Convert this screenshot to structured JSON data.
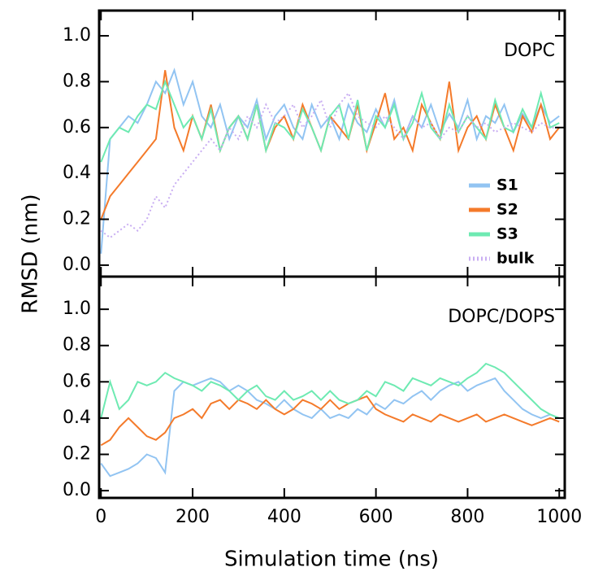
{
  "chart_data": [
    {
      "type": "line",
      "title": "DOPC",
      "ylabel": "RMSD (nm)",
      "x": [
        0,
        20,
        40,
        60,
        80,
        100,
        120,
        140,
        160,
        180,
        200,
        220,
        240,
        260,
        280,
        300,
        320,
        340,
        360,
        380,
        400,
        420,
        440,
        460,
        480,
        500,
        520,
        540,
        560,
        580,
        600,
        620,
        640,
        660,
        680,
        700,
        720,
        740,
        760,
        780,
        800,
        820,
        840,
        860,
        880,
        900,
        920,
        940,
        960,
        980,
        1000
      ],
      "xlim": [
        -4,
        1012
      ],
      "xticks": [
        0,
        200,
        400,
        600,
        800,
        1000
      ],
      "xtick_labels": false,
      "ylim": [
        -0.05,
        1.11
      ],
      "yticks": [
        {
          "value": 0,
          "label": "0.0"
        },
        0.2,
        0.4,
        0.6,
        0.8,
        {
          "value": 1,
          "label": "1.0"
        }
      ],
      "legend": "lower right",
      "series": [
        {
          "name": "S1",
          "color": "#92c4f2",
          "values": [
            0.05,
            0.55,
            0.6,
            0.65,
            0.62,
            0.7,
            0.8,
            0.75,
            0.85,
            0.7,
            0.8,
            0.65,
            0.6,
            0.7,
            0.55,
            0.65,
            0.6,
            0.72,
            0.55,
            0.65,
            0.7,
            0.6,
            0.55,
            0.7,
            0.6,
            0.65,
            0.55,
            0.7,
            0.62,
            0.58,
            0.68,
            0.6,
            0.72,
            0.55,
            0.65,
            0.6,
            0.7,
            0.58,
            0.66,
            0.6,
            0.72,
            0.55,
            0.65,
            0.62,
            0.7,
            0.58,
            0.66,
            0.6,
            0.7,
            0.62,
            0.65
          ]
        },
        {
          "name": "S2",
          "color": "#f47a2a",
          "values": [
            0.2,
            0.3,
            0.35,
            0.4,
            0.45,
            0.5,
            0.55,
            0.85,
            0.6,
            0.5,
            0.65,
            0.55,
            0.7,
            0.5,
            0.6,
            0.65,
            0.55,
            0.7,
            0.5,
            0.6,
            0.65,
            0.55,
            0.7,
            0.6,
            0.5,
            0.65,
            0.6,
            0.55,
            0.7,
            0.5,
            0.62,
            0.75,
            0.55,
            0.6,
            0.5,
            0.7,
            0.62,
            0.55,
            0.8,
            0.5,
            0.6,
            0.65,
            0.55,
            0.7,
            0.6,
            0.5,
            0.65,
            0.58,
            0.7,
            0.55,
            0.6
          ]
        },
        {
          "name": "S3",
          "color": "#6eeab2",
          "values": [
            0.45,
            0.55,
            0.6,
            0.58,
            0.65,
            0.7,
            0.68,
            0.8,
            0.7,
            0.6,
            0.65,
            0.55,
            0.68,
            0.5,
            0.6,
            0.65,
            0.55,
            0.7,
            0.5,
            0.62,
            0.6,
            0.55,
            0.68,
            0.6,
            0.5,
            0.65,
            0.7,
            0.55,
            0.72,
            0.5,
            0.65,
            0.6,
            0.7,
            0.55,
            0.62,
            0.75,
            0.6,
            0.55,
            0.7,
            0.58,
            0.65,
            0.6,
            0.55,
            0.72,
            0.6,
            0.58,
            0.68,
            0.6,
            0.75,
            0.6,
            0.62
          ]
        },
        {
          "name": "bulk",
          "color": "#c9aef2",
          "dashed": true,
          "values": [
            0.15,
            0.12,
            0.15,
            0.18,
            0.15,
            0.2,
            0.3,
            0.25,
            0.35,
            0.4,
            0.45,
            0.5,
            0.55,
            0.5,
            0.6,
            0.55,
            0.65,
            0.6,
            0.7,
            0.62,
            0.65,
            0.7,
            0.6,
            0.65,
            0.72,
            0.6,
            0.7,
            0.75,
            0.65,
            0.62,
            0.6,
            0.65,
            0.6,
            0.55,
            0.65,
            0.6,
            0.62,
            0.55,
            0.6,
            0.58,
            0.65,
            0.6,
            0.62,
            0.58,
            0.6,
            0.62,
            0.6,
            0.58,
            0.62,
            0.6,
            0.6
          ]
        }
      ]
    },
    {
      "type": "line",
      "title": "DOPC/DOPS",
      "xlabel": "Simulation time (ns)",
      "x": [
        0,
        20,
        40,
        60,
        80,
        100,
        120,
        140,
        160,
        180,
        200,
        220,
        240,
        260,
        280,
        300,
        320,
        340,
        360,
        380,
        400,
        420,
        440,
        460,
        480,
        500,
        520,
        540,
        560,
        580,
        600,
        620,
        640,
        660,
        680,
        700,
        720,
        740,
        760,
        780,
        800,
        820,
        840,
        860,
        880,
        900,
        920,
        940,
        960,
        980,
        1000
      ],
      "xlim": [
        -4,
        1012
      ],
      "xticks": [
        0,
        200,
        400,
        600,
        800,
        1000
      ],
      "ylim": [
        -0.04,
        1.18
      ],
      "yticks": [
        {
          "value": 0,
          "label": "0.0"
        },
        0.2,
        0.4,
        0.6,
        0.8,
        {
          "value": 1,
          "label": "1.0"
        }
      ],
      "series": [
        {
          "name": "S1",
          "color": "#92c4f2",
          "values": [
            0.15,
            0.08,
            0.1,
            0.12,
            0.15,
            0.2,
            0.18,
            0.1,
            0.55,
            0.6,
            0.58,
            0.6,
            0.62,
            0.6,
            0.55,
            0.58,
            0.55,
            0.5,
            0.48,
            0.45,
            0.5,
            0.45,
            0.42,
            0.4,
            0.45,
            0.4,
            0.42,
            0.4,
            0.45,
            0.42,
            0.48,
            0.45,
            0.5,
            0.48,
            0.52,
            0.55,
            0.5,
            0.55,
            0.58,
            0.6,
            0.55,
            0.58,
            0.6,
            0.62,
            0.55,
            0.5,
            0.45,
            0.42,
            0.4,
            0.42,
            0.4
          ]
        },
        {
          "name": "S2",
          "color": "#f47a2a",
          "values": [
            0.25,
            0.28,
            0.35,
            0.4,
            0.35,
            0.3,
            0.28,
            0.32,
            0.4,
            0.42,
            0.45,
            0.4,
            0.48,
            0.5,
            0.45,
            0.5,
            0.48,
            0.45,
            0.5,
            0.45,
            0.42,
            0.45,
            0.5,
            0.48,
            0.45,
            0.5,
            0.45,
            0.48,
            0.5,
            0.52,
            0.45,
            0.42,
            0.4,
            0.38,
            0.42,
            0.4,
            0.38,
            0.42,
            0.4,
            0.38,
            0.4,
            0.42,
            0.38,
            0.4,
            0.42,
            0.4,
            0.38,
            0.36,
            0.38,
            0.4,
            0.38
          ]
        },
        {
          "name": "S3",
          "color": "#6eeab2",
          "values": [
            0.4,
            0.6,
            0.45,
            0.5,
            0.6,
            0.58,
            0.6,
            0.65,
            0.62,
            0.6,
            0.58,
            0.55,
            0.6,
            0.58,
            0.55,
            0.5,
            0.55,
            0.58,
            0.52,
            0.5,
            0.55,
            0.5,
            0.52,
            0.55,
            0.5,
            0.55,
            0.5,
            0.48,
            0.5,
            0.55,
            0.52,
            0.6,
            0.58,
            0.55,
            0.62,
            0.6,
            0.58,
            0.62,
            0.6,
            0.58,
            0.62,
            0.65,
            0.7,
            0.68,
            0.65,
            0.6,
            0.55,
            0.5,
            0.45,
            0.42,
            0.4
          ]
        }
      ]
    }
  ]
}
